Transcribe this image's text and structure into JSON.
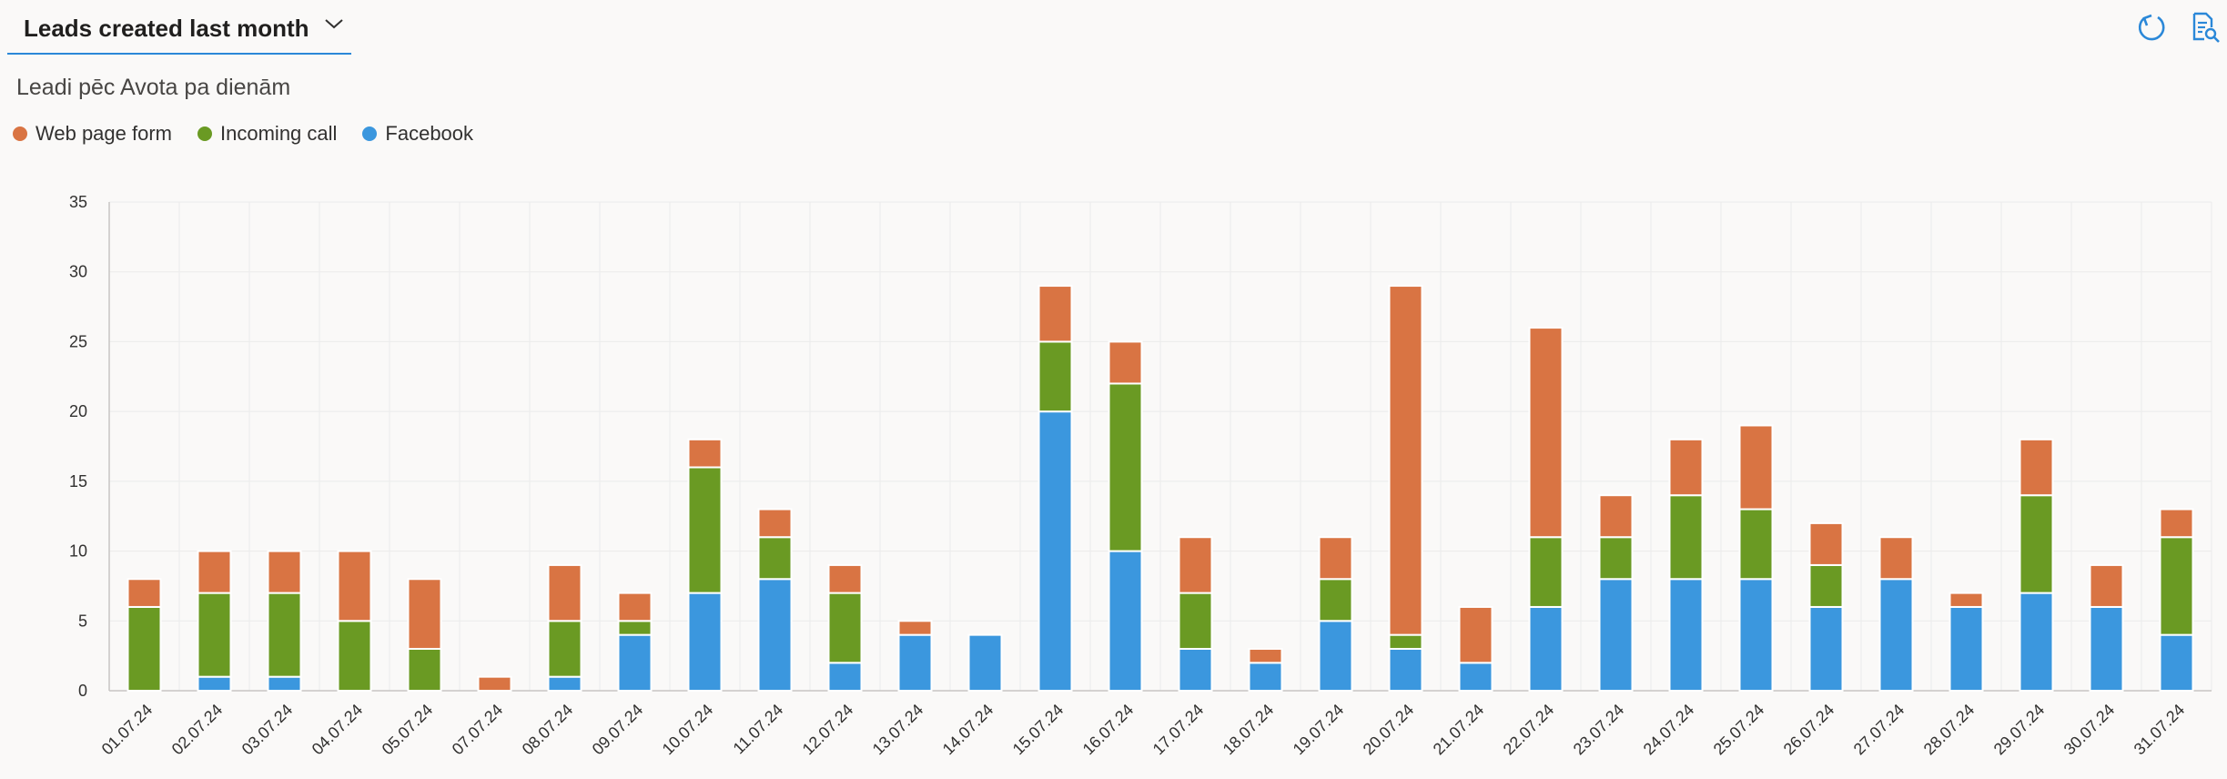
{
  "header": {
    "view_title": "Leads created last month",
    "refresh_icon": "refresh-icon",
    "report_icon": "document-search-icon",
    "accent_color": "#2b88d8"
  },
  "chart_title": "Leadi pēc Avota pa dienām",
  "chart_data": {
    "type": "bar",
    "stacked": true,
    "title": "Leadi pēc Avota pa dienām",
    "xlabel": "",
    "ylabel": "",
    "ylim": [
      0,
      35
    ],
    "yticks": [
      0,
      5,
      10,
      15,
      20,
      25,
      30,
      35
    ],
    "grid": true,
    "legend": "top-left",
    "categories": [
      "01.07.24",
      "02.07.24",
      "03.07.24",
      "04.07.24",
      "05.07.24",
      "07.07.24",
      "08.07.24",
      "09.07.24",
      "10.07.24",
      "11.07.24",
      "12.07.24",
      "13.07.24",
      "14.07.24",
      "15.07.24",
      "16.07.24",
      "17.07.24",
      "18.07.24",
      "19.07.24",
      "20.07.24",
      "21.07.24",
      "22.07.24",
      "23.07.24",
      "24.07.24",
      "25.07.24",
      "26.07.24",
      "27.07.24",
      "28.07.24",
      "29.07.24",
      "30.07.24",
      "31.07.24"
    ],
    "series": [
      {
        "name": "Facebook",
        "color": "#3b97de",
        "values": [
          0,
          1,
          1,
          0,
          0,
          0,
          1,
          4,
          7,
          8,
          2,
          4,
          4,
          20,
          10,
          3,
          2,
          5,
          3,
          2,
          6,
          8,
          8,
          8,
          6,
          8,
          6,
          7,
          6,
          4
        ]
      },
      {
        "name": "Incoming call",
        "color": "#6a9a23",
        "values": [
          6,
          6,
          6,
          5,
          3,
          0,
          4,
          1,
          9,
          3,
          5,
          0,
          0,
          5,
          12,
          4,
          0,
          3,
          1,
          0,
          5,
          3,
          6,
          5,
          3,
          0,
          0,
          7,
          0,
          7
        ]
      },
      {
        "name": "Web page form",
        "color": "#d97443",
        "values": [
          2,
          3,
          3,
          5,
          5,
          1,
          4,
          2,
          2,
          2,
          2,
          1,
          0,
          4,
          3,
          4,
          1,
          3,
          25,
          4,
          15,
          3,
          4,
          6,
          3,
          3,
          1,
          4,
          3,
          2
        ]
      }
    ]
  },
  "legend": [
    {
      "label": "Web page form",
      "color": "#d97443"
    },
    {
      "label": "Incoming call",
      "color": "#6a9a23"
    },
    {
      "label": "Facebook",
      "color": "#3b97de"
    }
  ]
}
